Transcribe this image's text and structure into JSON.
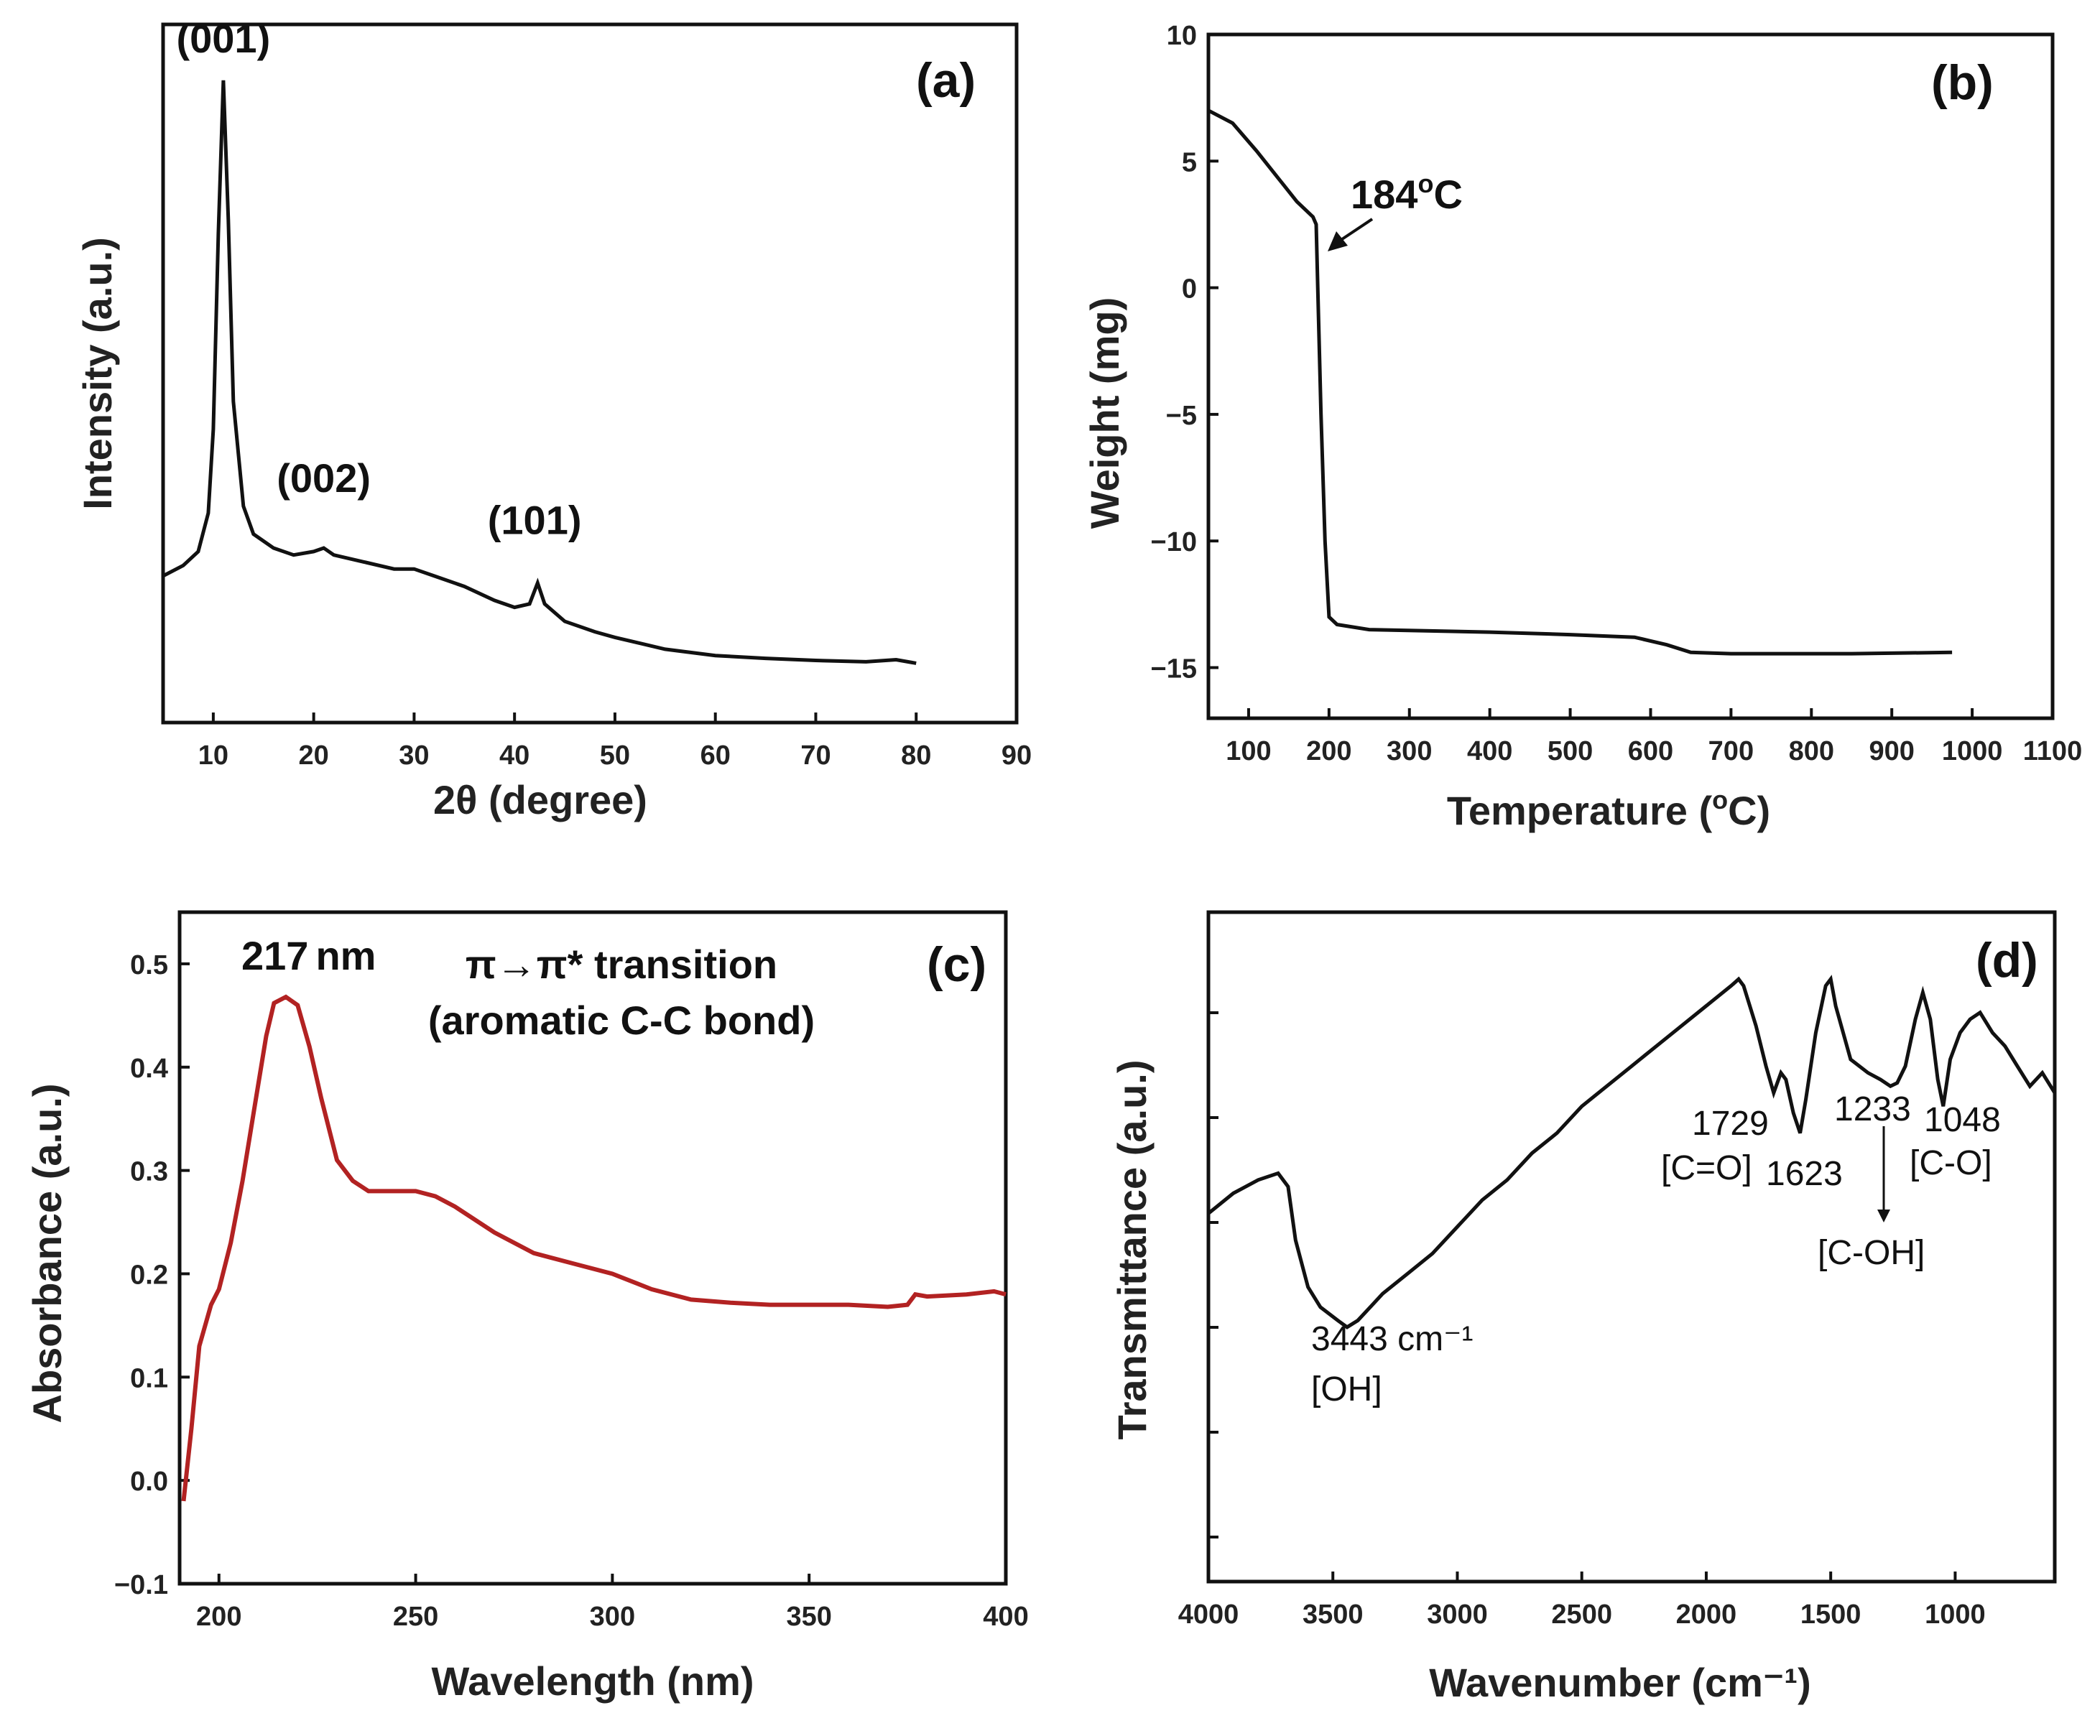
{
  "chart_data": [
    {
      "id": "a",
      "type": "line",
      "panel_label": "(a)",
      "xlabel": "2θ (degree)",
      "ylabel": "Intensity (a.u.)",
      "xlim": [
        5,
        90
      ],
      "ylim": [
        0,
        100
      ],
      "xticks": [
        10,
        20,
        30,
        40,
        50,
        60,
        70,
        80,
        90
      ],
      "xtick_labels": [
        "10",
        "20",
        "30",
        "40",
        "50",
        "60",
        "70",
        "80",
        "90"
      ],
      "color": "#111111",
      "points": [
        [
          5,
          21
        ],
        [
          7,
          22.5
        ],
        [
          8.5,
          24.5
        ],
        [
          9.5,
          30
        ],
        [
          10,
          42
        ],
        [
          10.5,
          70
        ],
        [
          11,
          92
        ],
        [
          11.5,
          72
        ],
        [
          12,
          46
        ],
        [
          13,
          31
        ],
        [
          14,
          27
        ],
        [
          16,
          25
        ],
        [
          18,
          24
        ],
        [
          20,
          24.5
        ],
        [
          21,
          25
        ],
        [
          22,
          24
        ],
        [
          25,
          23
        ],
        [
          28,
          22
        ],
        [
          30,
          22
        ],
        [
          32,
          21
        ],
        [
          35,
          19.5
        ],
        [
          38,
          17.5
        ],
        [
          40,
          16.5
        ],
        [
          41.5,
          17
        ],
        [
          42.3,
          20
        ],
        [
          43,
          17
        ],
        [
          45,
          14.5
        ],
        [
          48,
          13
        ],
        [
          50,
          12.2
        ],
        [
          55,
          10.5
        ],
        [
          60,
          9.6
        ],
        [
          65,
          9.2
        ],
        [
          70,
          8.9
        ],
        [
          75,
          8.7
        ],
        [
          78,
          9
        ],
        [
          80,
          8.5
        ]
      ],
      "annotations": [
        {
          "text": "(001)",
          "x": 11,
          "y": 96
        },
        {
          "text": "(002)",
          "x": 21,
          "y": 33
        },
        {
          "text": "(101)",
          "x": 42,
          "y": 27
        }
      ]
    },
    {
      "id": "b",
      "type": "line",
      "panel_label": "(b)",
      "xlabel": "Temperature (°C)",
      "xlabel_pre": "Temperature (",
      "xlabel_sup": "o",
      "xlabel_post": "C)",
      "ylabel": "Weight (mg)",
      "xlim": [
        50,
        1100
      ],
      "ylim": [
        -17,
        10
      ],
      "xticks": [
        100,
        200,
        300,
        400,
        500,
        600,
        700,
        800,
        900,
        1000,
        1100
      ],
      "xtick_labels": [
        "100",
        "200",
        "300",
        "400",
        "500",
        "600",
        "700",
        "800",
        "900",
        "1000",
        "1100"
      ],
      "yticks": [
        10,
        5,
        0,
        -5,
        -10,
        -15
      ],
      "ytick_labels": [
        "10",
        "5",
        "0",
        "−5",
        "−10",
        "−15"
      ],
      "color": "#111111",
      "points": [
        [
          50,
          7
        ],
        [
          80,
          6.5
        ],
        [
          110,
          5.4
        ],
        [
          140,
          4.2
        ],
        [
          160,
          3.4
        ],
        [
          180,
          2.8
        ],
        [
          184,
          2.5
        ],
        [
          186,
          0
        ],
        [
          190,
          -5
        ],
        [
          195,
          -10
        ],
        [
          200,
          -13
        ],
        [
          210,
          -13.3
        ],
        [
          250,
          -13.5
        ],
        [
          400,
          -13.6
        ],
        [
          500,
          -13.7
        ],
        [
          580,
          -13.8
        ],
        [
          620,
          -14.1
        ],
        [
          650,
          -14.4
        ],
        [
          700,
          -14.45
        ],
        [
          850,
          -14.45
        ],
        [
          975,
          -14.4
        ]
      ],
      "annotation": {
        "text_pre": "184",
        "text_sup": "o",
        "text_post": "C",
        "point": [
          186,
          1.2
        ]
      }
    },
    {
      "id": "c",
      "type": "line",
      "panel_label": "(c)",
      "xlabel": "Wavelength (nm)",
      "ylabel": "Absorbance (a.u.)",
      "xlim": [
        190,
        400
      ],
      "ylim": [
        -0.1,
        0.55
      ],
      "xticks": [
        200,
        250,
        300,
        350,
        400
      ],
      "xtick_labels": [
        "200",
        "250",
        "300",
        "350",
        "400"
      ],
      "yticks": [
        -0.1,
        0.0,
        0.1,
        0.2,
        0.3,
        0.4,
        0.5
      ],
      "ytick_labels": [
        "−0.1",
        "0.0",
        "0.1",
        "0.2",
        "0.3",
        "0.4",
        "0.5"
      ],
      "color": "#b22222",
      "points": [
        [
          191,
          -0.02
        ],
        [
          193,
          0.05
        ],
        [
          195,
          0.13
        ],
        [
          198,
          0.17
        ],
        [
          200,
          0.185
        ],
        [
          203,
          0.23
        ],
        [
          206,
          0.29
        ],
        [
          209,
          0.36
        ],
        [
          212,
          0.43
        ],
        [
          214,
          0.462
        ],
        [
          217,
          0.468
        ],
        [
          220,
          0.46
        ],
        [
          223,
          0.42
        ],
        [
          226,
          0.37
        ],
        [
          230,
          0.31
        ],
        [
          234,
          0.29
        ],
        [
          238,
          0.28
        ],
        [
          245,
          0.28
        ],
        [
          250,
          0.28
        ],
        [
          255,
          0.275
        ],
        [
          260,
          0.265
        ],
        [
          270,
          0.24
        ],
        [
          280,
          0.22
        ],
        [
          290,
          0.21
        ],
        [
          300,
          0.2
        ],
        [
          310,
          0.185
        ],
        [
          320,
          0.175
        ],
        [
          330,
          0.172
        ],
        [
          340,
          0.17
        ],
        [
          350,
          0.17
        ],
        [
          360,
          0.17
        ],
        [
          370,
          0.168
        ],
        [
          375,
          0.17
        ],
        [
          377,
          0.18
        ],
        [
          380,
          0.178
        ],
        [
          390,
          0.18
        ],
        [
          397,
          0.183
        ],
        [
          400,
          0.18
        ]
      ],
      "annotations": [
        {
          "text": "217",
          "unit": "nm"
        },
        {
          "text": "π→π* transition"
        },
        {
          "text": "(aromatic C-C bond)"
        }
      ]
    },
    {
      "id": "d",
      "type": "line",
      "panel_label": "(d)",
      "xlabel": "Wavenumber (cm⁻¹)",
      "ylabel": "Transmittance (a.u.)",
      "xlim": [
        4000,
        600
      ],
      "ylim": [
        0,
        100
      ],
      "xticks": [
        4000,
        3500,
        3000,
        2500,
        2000,
        1500,
        1000
      ],
      "xtick_labels": [
        "4000",
        "3500",
        "3000",
        "2500",
        "2000",
        "1500",
        "1000"
      ],
      "color": "#111111",
      "points": [
        [
          4000,
          55
        ],
        [
          3900,
          58
        ],
        [
          3800,
          60
        ],
        [
          3720,
          61
        ],
        [
          3680,
          59
        ],
        [
          3650,
          51
        ],
        [
          3600,
          44
        ],
        [
          3550,
          41
        ],
        [
          3480,
          39
        ],
        [
          3443,
          38
        ],
        [
          3400,
          39
        ],
        [
          3350,
          41
        ],
        [
          3300,
          43
        ],
        [
          3200,
          46
        ],
        [
          3100,
          49
        ],
        [
          3000,
          53
        ],
        [
          2900,
          57
        ],
        [
          2800,
          60
        ],
        [
          2700,
          64
        ],
        [
          2600,
          67
        ],
        [
          2500,
          71
        ],
        [
          2400,
          74
        ],
        [
          2300,
          77
        ],
        [
          2200,
          80
        ],
        [
          2100,
          83
        ],
        [
          2000,
          86
        ],
        [
          1900,
          89
        ],
        [
          1870,
          90
        ],
        [
          1850,
          89
        ],
        [
          1800,
          83
        ],
        [
          1760,
          77
        ],
        [
          1729,
          73
        ],
        [
          1700,
          76
        ],
        [
          1680,
          75
        ],
        [
          1650,
          70
        ],
        [
          1623,
          67
        ],
        [
          1600,
          72
        ],
        [
          1560,
          82
        ],
        [
          1520,
          89
        ],
        [
          1500,
          90
        ],
        [
          1480,
          86
        ],
        [
          1420,
          78
        ],
        [
          1350,
          76
        ],
        [
          1300,
          75
        ],
        [
          1260,
          74
        ],
        [
          1233,
          74.5
        ],
        [
          1200,
          77
        ],
        [
          1160,
          84
        ],
        [
          1130,
          88
        ],
        [
          1100,
          84
        ],
        [
          1070,
          75
        ],
        [
          1048,
          71
        ],
        [
          1020,
          78
        ],
        [
          980,
          82
        ],
        [
          940,
          84
        ],
        [
          900,
          85
        ],
        [
          850,
          82
        ],
        [
          800,
          80
        ],
        [
          750,
          77
        ],
        [
          700,
          74
        ],
        [
          650,
          76
        ],
        [
          600,
          73
        ]
      ],
      "annotations": [
        {
          "text": "3443 cm⁻¹"
        },
        {
          "text": "[OH]"
        },
        {
          "text": "1729"
        },
        {
          "text": "[C=O]"
        },
        {
          "text": "1623"
        },
        {
          "text": "1233"
        },
        {
          "text": "[C-OH]"
        },
        {
          "text": "1048"
        },
        {
          "text": "[C-O]"
        }
      ]
    }
  ]
}
